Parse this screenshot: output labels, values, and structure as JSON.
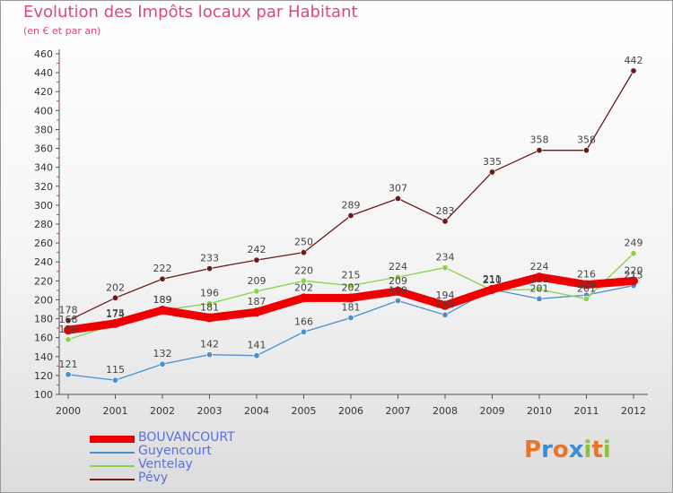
{
  "header": {
    "title": "Evolution des Impôts locaux par Habitant",
    "subtitle": "(en € et par an)"
  },
  "brand": {
    "letters": [
      "P",
      "r",
      "o",
      "x",
      "i",
      "t",
      "i"
    ],
    "colors": [
      "#e8752b",
      "#3a8fd8",
      "#e8752b",
      "#3a8fd8",
      "#8ac23a",
      "#e8752b",
      "#8ac23a"
    ]
  },
  "chart_data": {
    "type": "line",
    "title": "Evolution des Impôts locaux par Habitant",
    "subtitle": "(en € et par an)",
    "xlabel": "",
    "ylabel": "",
    "x": [
      "2000",
      "2001",
      "2002",
      "2003",
      "2004",
      "2005",
      "2006",
      "2007",
      "2008",
      "2009",
      "2010",
      "2011",
      "2012"
    ],
    "ylim": [
      100,
      460
    ],
    "yticks": [
      100,
      120,
      140,
      160,
      180,
      200,
      220,
      240,
      260,
      280,
      300,
      320,
      340,
      360,
      380,
      400,
      420,
      440,
      460
    ],
    "grid": false,
    "legend_position": "bottom-left",
    "series": [
      {
        "name": "BOUVANCOURT",
        "color": "#ee0000",
        "emphasis": true,
        "values": [
          168,
          175,
          189,
          181,
          187,
          202,
          202,
          209,
          194,
          211,
          224,
          216,
          220
        ]
      },
      {
        "name": "Guyencourt",
        "color": "#4a8fd0",
        "values": [
          121,
          115,
          132,
          142,
          141,
          166,
          181,
          199,
          184,
          211,
          201,
          205,
          215
        ]
      },
      {
        "name": "Ventelay",
        "color": "#86d44a",
        "values": [
          158,
          174,
          189,
          196,
          209,
          220,
          215,
          224,
          234,
          210,
          211,
          201,
          249
        ]
      },
      {
        "name": "Pévy",
        "color": "#6b1a1a",
        "values": [
          178,
          202,
          222,
          233,
          242,
          250,
          289,
          307,
          283,
          335,
          358,
          358,
          442
        ]
      }
    ]
  }
}
